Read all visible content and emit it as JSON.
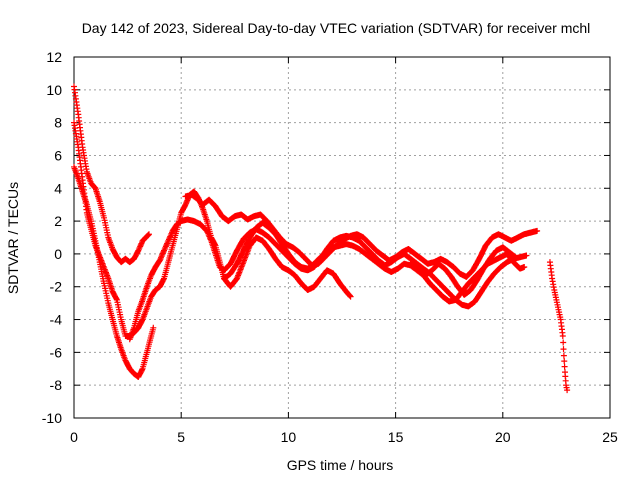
{
  "chart_data": {
    "type": "scatter",
    "title": "Day 142 of 2023, Sidereal Day-to-day VTEC variation (SDTVAR) for receiver mchl",
    "xlabel": "GPS time / hours",
    "ylabel": "SDTVAR / TECUs",
    "xlim": [
      0,
      25
    ],
    "ylim": [
      -10,
      12
    ],
    "xticks": [
      0,
      5,
      10,
      15,
      20,
      25
    ],
    "yticks": [
      -10,
      -8,
      -6,
      -4,
      -2,
      0,
      2,
      4,
      6,
      8,
      10,
      12
    ],
    "grid": true,
    "marker": "plus",
    "color": "#ff0000",
    "series": [
      {
        "name": "track-1",
        "points": [
          [
            0.0,
            10.2
          ],
          [
            0.2,
            8.5
          ],
          [
            0.4,
            6.5
          ],
          [
            0.6,
            5.0
          ],
          [
            0.8,
            4.3
          ],
          [
            1.0,
            4.0
          ],
          [
            1.2,
            3.2
          ],
          [
            1.4,
            2.2
          ],
          [
            1.6,
            1.0
          ],
          [
            1.8,
            0.3
          ],
          [
            2.0,
            -0.2
          ],
          [
            2.2,
            -0.5
          ],
          [
            2.4,
            -0.3
          ],
          [
            2.6,
            -0.5
          ],
          [
            2.8,
            -0.3
          ],
          [
            3.0,
            0.2
          ],
          [
            3.2,
            0.8
          ],
          [
            3.5,
            1.2
          ]
        ]
      },
      {
        "name": "track-2",
        "points": [
          [
            0.0,
            8.0
          ],
          [
            0.2,
            6.5
          ],
          [
            0.4,
            4.5
          ],
          [
            0.6,
            2.5
          ],
          [
            0.8,
            1.5
          ],
          [
            1.0,
            0.5
          ],
          [
            1.3,
            -0.5
          ],
          [
            1.6,
            -1.5
          ],
          [
            1.8,
            -2.3
          ],
          [
            2.0,
            -2.8
          ],
          [
            2.2,
            -4.0
          ],
          [
            2.4,
            -5.0
          ],
          [
            2.6,
            -5.0
          ],
          [
            2.8,
            -4.8
          ],
          [
            3.0,
            -4.5
          ],
          [
            3.2,
            -4.0
          ],
          [
            3.4,
            -3.3
          ],
          [
            3.6,
            -2.6
          ],
          [
            3.8,
            -2.2
          ],
          [
            4.0,
            -2.0
          ],
          [
            4.2,
            -1.5
          ],
          [
            4.4,
            -0.5
          ],
          [
            4.6,
            0.5
          ],
          [
            4.8,
            1.5
          ],
          [
            5.0,
            2.5
          ],
          [
            5.2,
            3.0
          ],
          [
            5.4,
            3.6
          ],
          [
            5.6,
            3.8
          ],
          [
            5.8,
            3.4
          ],
          [
            6.0,
            2.8
          ],
          [
            6.2,
            2.0
          ],
          [
            6.4,
            1.0
          ],
          [
            6.6,
            0.5
          ],
          [
            6.8,
            -0.5
          ],
          [
            7.0,
            -1.5
          ],
          [
            7.3,
            -2.0
          ],
          [
            7.6,
            -1.5
          ],
          [
            7.9,
            -0.5
          ],
          [
            8.2,
            0.5
          ],
          [
            8.5,
            1.0
          ],
          [
            8.8,
            0.8
          ],
          [
            9.1,
            0.3
          ],
          [
            9.4,
            -0.3
          ],
          [
            9.7,
            -0.8
          ],
          [
            10.0,
            -1.0
          ],
          [
            10.3,
            -1.3
          ],
          [
            10.6,
            -1.8
          ],
          [
            10.9,
            -2.2
          ],
          [
            11.2,
            -2.0
          ],
          [
            11.5,
            -1.5
          ],
          [
            11.8,
            -1.0
          ],
          [
            12.1,
            -1.2
          ],
          [
            12.4,
            -1.8
          ],
          [
            12.7,
            -2.3
          ],
          [
            12.9,
            -2.6
          ]
        ]
      },
      {
        "name": "track-3",
        "points": [
          [
            0.0,
            5.3
          ],
          [
            0.2,
            4.6
          ],
          [
            0.4,
            3.8
          ],
          [
            0.6,
            3.0
          ],
          [
            0.8,
            2.0
          ],
          [
            1.0,
            0.8
          ],
          [
            1.2,
            -0.5
          ],
          [
            1.4,
            -1.8
          ],
          [
            1.6,
            -3.0
          ],
          [
            1.8,
            -4.0
          ],
          [
            2.0,
            -5.0
          ],
          [
            2.2,
            -5.8
          ],
          [
            2.4,
            -6.5
          ],
          [
            2.6,
            -7.0
          ],
          [
            2.8,
            -7.3
          ],
          [
            3.0,
            -7.5
          ],
          [
            3.2,
            -7.0
          ],
          [
            3.4,
            -6.0
          ],
          [
            3.6,
            -5.0
          ],
          [
            3.7,
            -4.5
          ]
        ]
      },
      {
        "name": "track-4",
        "points": [
          [
            2.6,
            -5.2
          ],
          [
            2.8,
            -4.5
          ],
          [
            3.0,
            -3.5
          ],
          [
            3.2,
            -2.8
          ],
          [
            3.4,
            -2.0
          ],
          [
            3.6,
            -1.3
          ],
          [
            3.8,
            -0.8
          ],
          [
            4.0,
            -0.4
          ],
          [
            4.2,
            0.2
          ],
          [
            4.4,
            0.8
          ],
          [
            4.6,
            1.4
          ],
          [
            4.8,
            1.8
          ],
          [
            5.0,
            2.0
          ],
          [
            5.3,
            2.1
          ],
          [
            5.6,
            2.0
          ],
          [
            5.9,
            1.8
          ],
          [
            6.2,
            1.4
          ],
          [
            6.4,
            0.8
          ],
          [
            6.6,
            0.0
          ],
          [
            6.8,
            -0.8
          ],
          [
            7.0,
            -1.0
          ],
          [
            7.3,
            -0.6
          ],
          [
            7.6,
            0.2
          ],
          [
            7.9,
            0.9
          ],
          [
            8.2,
            1.3
          ],
          [
            8.5,
            1.5
          ],
          [
            8.8,
            1.3
          ],
          [
            9.1,
            1.0
          ],
          [
            9.4,
            0.6
          ],
          [
            9.7,
            0.2
          ],
          [
            10.0,
            -0.2
          ],
          [
            10.3,
            -0.6
          ],
          [
            10.6,
            -0.9
          ],
          [
            10.9,
            -1.0
          ],
          [
            11.2,
            -0.8
          ],
          [
            11.5,
            -0.3
          ],
          [
            11.8,
            0.3
          ],
          [
            12.1,
            0.8
          ],
          [
            12.4,
            1.0
          ],
          [
            12.7,
            1.1
          ],
          [
            13.0,
            1.0
          ],
          [
            13.3,
            0.8
          ],
          [
            13.6,
            0.4
          ],
          [
            13.9,
            0.0
          ],
          [
            14.2,
            -0.4
          ],
          [
            14.5,
            -0.7
          ],
          [
            14.8,
            -0.5
          ],
          [
            15.1,
            -0.2
          ],
          [
            15.4,
            0.0
          ],
          [
            15.7,
            -0.3
          ],
          [
            16.0,
            -0.6
          ],
          [
            16.3,
            -0.9
          ],
          [
            16.6,
            -1.2
          ],
          [
            16.9,
            -1.6
          ],
          [
            17.2,
            -2.0
          ],
          [
            17.5,
            -2.4
          ],
          [
            17.8,
            -2.8
          ],
          [
            18.1,
            -3.1
          ],
          [
            18.4,
            -3.2
          ],
          [
            18.7,
            -2.9
          ],
          [
            19.0,
            -2.3
          ],
          [
            19.3,
            -1.7
          ],
          [
            19.6,
            -1.2
          ],
          [
            19.9,
            -0.8
          ],
          [
            20.2,
            -0.5
          ],
          [
            20.5,
            -0.3
          ],
          [
            20.8,
            -0.2
          ],
          [
            21.1,
            -0.1
          ]
        ]
      },
      {
        "name": "track-5",
        "points": [
          [
            5.2,
            3.5
          ],
          [
            5.5,
            3.6
          ],
          [
            5.8,
            3.3
          ],
          [
            6.0,
            3.0
          ],
          [
            6.3,
            3.3
          ],
          [
            6.6,
            2.9
          ],
          [
            6.9,
            2.3
          ],
          [
            7.2,
            2.0
          ],
          [
            7.5,
            2.3
          ],
          [
            7.8,
            2.4
          ],
          [
            8.1,
            2.1
          ],
          [
            8.4,
            2.3
          ],
          [
            8.7,
            2.4
          ],
          [
            9.0,
            2.0
          ],
          [
            9.3,
            1.5
          ],
          [
            9.6,
            1.0
          ],
          [
            9.9,
            0.6
          ],
          [
            10.2,
            0.4
          ],
          [
            10.5,
            0.1
          ],
          [
            10.8,
            -0.3
          ],
          [
            11.1,
            -0.7
          ],
          [
            11.4,
            -0.6
          ],
          [
            11.7,
            -0.2
          ],
          [
            12.0,
            0.2
          ],
          [
            12.3,
            0.6
          ],
          [
            12.6,
            0.9
          ],
          [
            12.9,
            1.1
          ],
          [
            13.2,
            1.2
          ],
          [
            13.5,
            1.0
          ],
          [
            13.8,
            0.6
          ],
          [
            14.1,
            0.2
          ],
          [
            14.4,
            -0.1
          ],
          [
            14.7,
            -0.4
          ],
          [
            15.0,
            -0.2
          ],
          [
            15.3,
            0.1
          ],
          [
            15.6,
            0.3
          ],
          [
            15.9,
            0.0
          ],
          [
            16.2,
            -0.3
          ],
          [
            16.5,
            -0.6
          ],
          [
            16.8,
            -0.5
          ],
          [
            17.1,
            -0.3
          ],
          [
            17.4,
            -0.5
          ],
          [
            17.7,
            -0.8
          ],
          [
            18.0,
            -1.2
          ],
          [
            18.3,
            -1.4
          ],
          [
            18.6,
            -1.0
          ],
          [
            18.9,
            -0.3
          ],
          [
            19.2,
            0.5
          ],
          [
            19.5,
            1.0
          ],
          [
            19.8,
            1.2
          ],
          [
            20.1,
            1.0
          ],
          [
            20.4,
            0.8
          ],
          [
            20.7,
            1.0
          ],
          [
            21.0,
            1.2
          ],
          [
            21.3,
            1.3
          ],
          [
            21.6,
            1.4
          ]
        ]
      },
      {
        "name": "track-6",
        "points": [
          [
            7.0,
            -1.5
          ],
          [
            7.3,
            -1.2
          ],
          [
            7.6,
            -0.6
          ],
          [
            7.9,
            0.2
          ],
          [
            8.2,
            1.0
          ],
          [
            8.5,
            1.6
          ],
          [
            8.8,
            1.9
          ],
          [
            9.1,
            1.6
          ],
          [
            9.4,
            1.2
          ],
          [
            9.7,
            0.6
          ],
          [
            10.0,
            0.0
          ],
          [
            10.3,
            -0.5
          ],
          [
            10.6,
            -0.8
          ],
          [
            10.9,
            -0.9
          ],
          [
            11.2,
            -0.6
          ],
          [
            11.5,
            -0.2
          ],
          [
            11.8,
            0.1
          ],
          [
            12.1,
            0.4
          ],
          [
            12.4,
            0.5
          ],
          [
            12.7,
            0.6
          ],
          [
            13.0,
            0.5
          ],
          [
            13.3,
            0.3
          ],
          [
            13.6,
            0.0
          ],
          [
            13.9,
            -0.3
          ],
          [
            14.2,
            -0.6
          ],
          [
            14.5,
            -0.9
          ],
          [
            14.8,
            -1.1
          ],
          [
            15.1,
            -0.9
          ],
          [
            15.4,
            -0.6
          ],
          [
            15.7,
            -0.7
          ],
          [
            16.0,
            -1.0
          ],
          [
            16.3,
            -1.3
          ],
          [
            16.6,
            -1.8
          ],
          [
            16.9,
            -2.2
          ],
          [
            17.2,
            -2.6
          ],
          [
            17.5,
            -2.9
          ],
          [
            17.8,
            -2.8
          ],
          [
            18.1,
            -2.3
          ],
          [
            18.4,
            -1.8
          ],
          [
            18.7,
            -1.4
          ],
          [
            19.0,
            -1.0
          ],
          [
            19.3,
            -0.6
          ],
          [
            19.6,
            -0.4
          ],
          [
            19.9,
            -0.2
          ],
          [
            20.2,
            0.0
          ],
          [
            20.5,
            -0.5
          ],
          [
            20.8,
            -0.9
          ],
          [
            21.0,
            -0.8
          ]
        ]
      },
      {
        "name": "track-7",
        "points": [
          [
            15.8,
            -0.5
          ],
          [
            16.1,
            -0.9
          ],
          [
            16.4,
            -1.3
          ],
          [
            16.7,
            -1.0
          ],
          [
            17.0,
            -0.6
          ],
          [
            17.3,
            -0.9
          ],
          [
            17.6,
            -1.4
          ],
          [
            17.9,
            -2.0
          ],
          [
            18.2,
            -2.5
          ],
          [
            18.5,
            -2.2
          ],
          [
            18.8,
            -1.6
          ],
          [
            19.1,
            -0.9
          ],
          [
            19.4,
            -0.3
          ],
          [
            19.7,
            0.2
          ],
          [
            20.0,
            0.4
          ],
          [
            20.3,
            0.1
          ],
          [
            20.6,
            -0.2
          ]
        ]
      },
      {
        "name": "track-8",
        "points": [
          [
            22.2,
            -0.5
          ],
          [
            22.3,
            -1.5
          ],
          [
            22.4,
            -2.2
          ],
          [
            22.5,
            -2.8
          ],
          [
            22.6,
            -3.4
          ],
          [
            22.7,
            -4.0
          ],
          [
            22.8,
            -5.0
          ],
          [
            22.85,
            -6.2
          ],
          [
            22.9,
            -7.2
          ],
          [
            22.95,
            -8.0
          ],
          [
            23.0,
            -8.3
          ]
        ]
      }
    ]
  }
}
